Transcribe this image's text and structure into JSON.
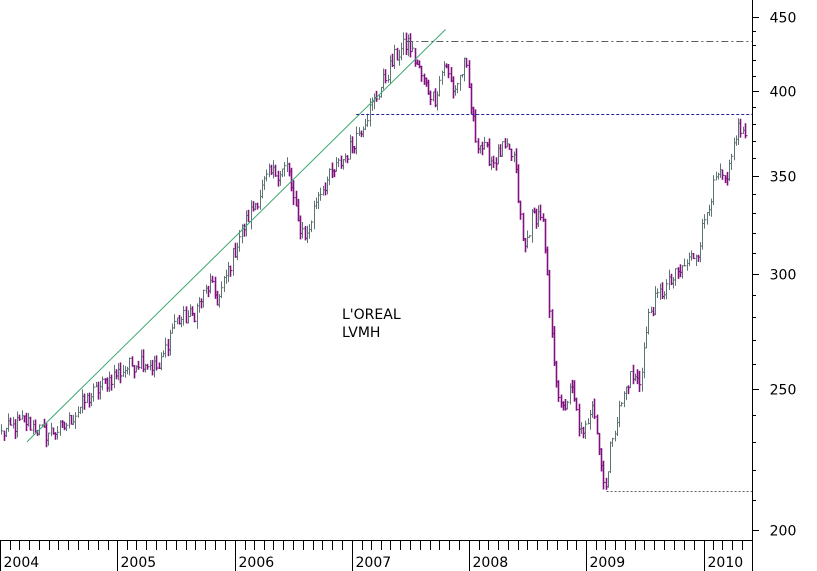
{
  "chart_data": {
    "type": "candlestick-ratio",
    "labels": [
      "L'OREAL",
      "LVMH"
    ],
    "y_scale": "log",
    "ylim": [
      197,
      462
    ],
    "y_ticks": [
      200,
      250,
      300,
      350,
      400,
      450
    ],
    "x_range": [
      "2004-01-01",
      "2010-06-01"
    ],
    "x_ticks": [
      "2004",
      "2005",
      "2006",
      "2007",
      "2008",
      "2009",
      "2010"
    ],
    "colors": {
      "up": "#5e7474",
      "down": "#80107f",
      "trend": "#3aa870",
      "hline": "#22229a"
    },
    "anchors": [
      [
        "2004-01-05",
        233
      ],
      [
        "2004-03-15",
        238
      ],
      [
        "2004-05-20",
        233
      ],
      [
        "2004-07-15",
        235
      ],
      [
        "2004-09-20",
        245
      ],
      [
        "2004-12-15",
        255
      ],
      [
        "2005-03-15",
        262
      ],
      [
        "2005-05-10",
        258
      ],
      [
        "2005-06-25",
        278
      ],
      [
        "2005-08-25",
        281
      ],
      [
        "2005-10-15",
        295
      ],
      [
        "2005-11-10",
        287
      ],
      [
        "2006-01-15",
        318
      ],
      [
        "2006-04-15",
        350
      ],
      [
        "2006-06-15",
        355
      ],
      [
        "2006-07-15",
        325
      ],
      [
        "2006-08-15",
        318
      ],
      [
        "2006-09-15",
        340
      ],
      [
        "2006-12-15",
        362
      ],
      [
        "2007-03-15",
        395
      ],
      [
        "2007-05-15",
        422
      ],
      [
        "2007-06-25",
        432
      ],
      [
        "2007-08-15",
        405
      ],
      [
        "2007-09-15",
        395
      ],
      [
        "2007-10-15",
        418
      ],
      [
        "2007-11-15",
        400
      ],
      [
        "2007-12-20",
        418
      ],
      [
        "2008-01-20",
        372
      ],
      [
        "2008-03-15",
        358
      ],
      [
        "2008-04-15",
        365
      ],
      [
        "2008-05-20",
        360
      ],
      [
        "2008-06-20",
        310
      ],
      [
        "2008-07-15",
        328
      ],
      [
        "2008-08-15",
        330
      ],
      [
        "2008-09-15",
        270
      ],
      [
        "2008-10-15",
        240
      ],
      [
        "2008-11-15",
        250
      ],
      [
        "2008-12-20",
        230
      ],
      [
        "2009-01-20",
        247
      ],
      [
        "2009-02-15",
        222
      ],
      [
        "2009-03-05",
        214
      ],
      [
        "2009-03-20",
        232
      ],
      [
        "2009-05-15",
        255
      ],
      [
        "2009-06-15",
        253
      ],
      [
        "2009-07-15",
        282
      ],
      [
        "2009-08-15",
        290
      ],
      [
        "2009-10-15",
        300
      ],
      [
        "2009-12-15",
        312
      ],
      [
        "2010-01-15",
        335
      ],
      [
        "2010-02-15",
        350
      ],
      [
        "2010-03-15",
        345
      ],
      [
        "2010-04-15",
        378
      ],
      [
        "2010-05-15",
        372
      ]
    ],
    "trendline": {
      "from": [
        "2004-03-25",
        230
      ],
      "to": [
        "2007-10-20",
        441
      ]
    },
    "horizontal_lines": [
      {
        "style": "dashdot",
        "from": "2007-06-20",
        "to": "2010-06-01",
        "value": 433
      },
      {
        "style": "dashed",
        "from": "2007-01-15",
        "to": "2010-06-01",
        "value": 386
      },
      {
        "style": "dotted",
        "from": "2009-03-05",
        "to": "2010-06-01",
        "value": 213
      }
    ]
  }
}
